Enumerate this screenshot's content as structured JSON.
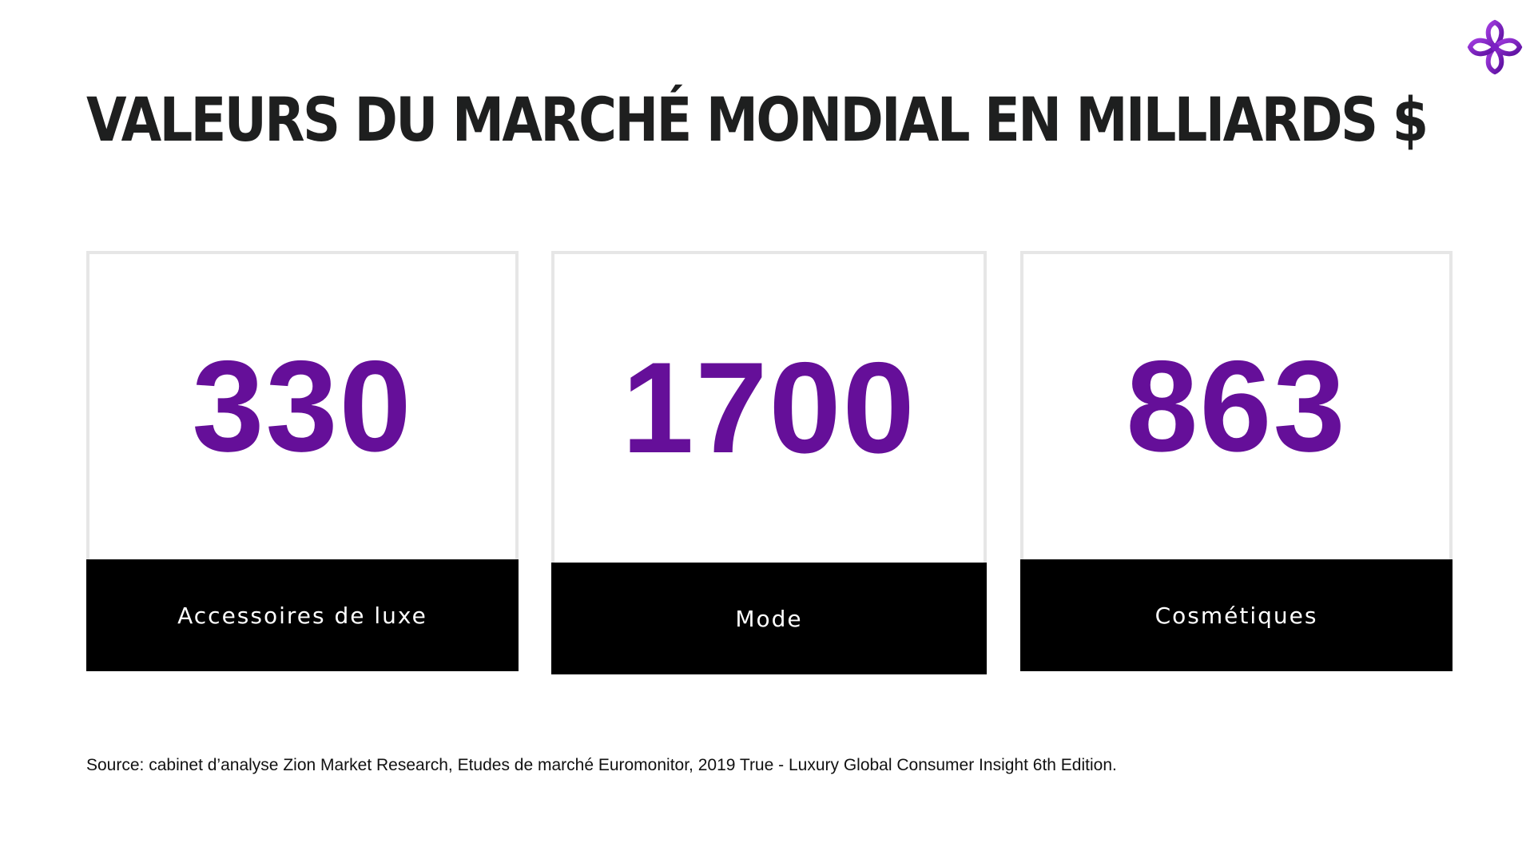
{
  "title": "VALEURS DU MARCHÉ MONDIAL EN MILLIARDS $",
  "logo": {
    "icon": "purple-knot-logo-icon",
    "color": "#7b1fc4"
  },
  "accent_color": "#650f99",
  "cards": [
    {
      "value": "330",
      "label": "Accessoires de luxe"
    },
    {
      "value": "1700",
      "label": "Mode"
    },
    {
      "value": "863",
      "label": "Cosmétiques"
    }
  ],
  "source": "Source: cabinet d’analyse Zion Market Research, Etudes de marché Euromonitor, 2019 True - Luxury Global Consumer Insight 6th Edition."
}
